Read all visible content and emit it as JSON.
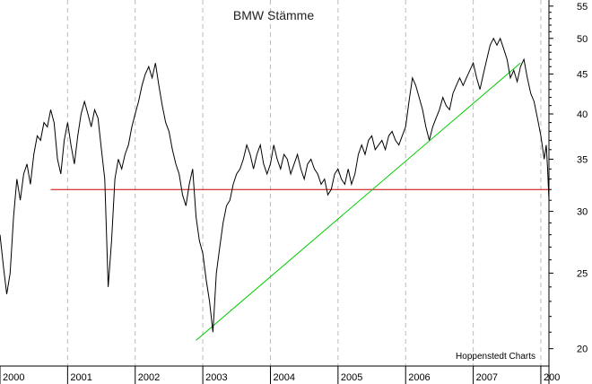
{
  "chart_data": {
    "type": "line",
    "title": "BMW Stämme",
    "source": "Hoppenstedt Charts",
    "x_tick_labels": [
      "2000",
      "2001",
      "2002",
      "2003",
      "2004",
      "2005",
      "2006",
      "2007",
      "200"
    ],
    "y_tick_labels": [
      "20",
      "25",
      "30",
      "35",
      "40",
      "45",
      "50",
      "55"
    ],
    "y_ticks": [
      20,
      25,
      30,
      35,
      40,
      45,
      50,
      55
    ],
    "yscale": "log",
    "ylim": [
      19,
      56
    ],
    "xlim": [
      2000.0,
      2008.12
    ],
    "grid": "vertical-dashed",
    "colors": {
      "price": "#000000",
      "support": "#cc0000",
      "trend": "#00cc00",
      "grid": "#bbbbbb"
    },
    "series": [
      {
        "points": [
          [
            2000.0,
            28.0
          ],
          [
            2000.05,
            25.5
          ],
          [
            2000.1,
            23.5
          ],
          [
            2000.15,
            25.0
          ],
          [
            2000.2,
            29.5
          ],
          [
            2000.25,
            33.0
          ],
          [
            2000.3,
            31.0
          ],
          [
            2000.35,
            33.5
          ],
          [
            2000.4,
            34.5
          ],
          [
            2000.45,
            32.5
          ],
          [
            2000.5,
            35.5
          ],
          [
            2000.55,
            37.5
          ],
          [
            2000.6,
            37.0
          ],
          [
            2000.65,
            39.0
          ],
          [
            2000.7,
            38.5
          ],
          [
            2000.75,
            40.5
          ],
          [
            2000.8,
            39.0
          ],
          [
            2000.85,
            35.0
          ],
          [
            2000.9,
            33.5
          ],
          [
            2000.95,
            37.0
          ],
          [
            2001.0,
            39.0
          ],
          [
            2001.05,
            36.5
          ],
          [
            2001.1,
            34.5
          ],
          [
            2001.15,
            37.5
          ],
          [
            2001.2,
            40.0
          ],
          [
            2001.25,
            41.5
          ],
          [
            2001.3,
            40.0
          ],
          [
            2001.35,
            38.5
          ],
          [
            2001.4,
            40.5
          ],
          [
            2001.45,
            39.5
          ],
          [
            2001.5,
            36.0
          ],
          [
            2001.55,
            33.0
          ],
          [
            2001.6,
            24.0
          ],
          [
            2001.65,
            27.5
          ],
          [
            2001.7,
            33.0
          ],
          [
            2001.75,
            35.0
          ],
          [
            2001.8,
            34.0
          ],
          [
            2001.85,
            35.5
          ],
          [
            2001.9,
            36.5
          ],
          [
            2001.95,
            38.5
          ],
          [
            2002.0,
            40.0
          ],
          [
            2002.05,
            41.5
          ],
          [
            2002.1,
            43.5
          ],
          [
            2002.15,
            45.0
          ],
          [
            2002.2,
            46.0
          ],
          [
            2002.25,
            44.5
          ],
          [
            2002.3,
            46.5
          ],
          [
            2002.35,
            43.5
          ],
          [
            2002.4,
            41.0
          ],
          [
            2002.45,
            39.0
          ],
          [
            2002.5,
            38.0
          ],
          [
            2002.55,
            36.0
          ],
          [
            2002.6,
            34.5
          ],
          [
            2002.65,
            33.5
          ],
          [
            2002.7,
            31.5
          ],
          [
            2002.75,
            30.5
          ],
          [
            2002.8,
            32.5
          ],
          [
            2002.85,
            34.0
          ],
          [
            2002.9,
            29.5
          ],
          [
            2002.95,
            27.5
          ],
          [
            2003.0,
            26.5
          ],
          [
            2003.05,
            24.5
          ],
          [
            2003.1,
            23.0
          ],
          [
            2003.15,
            21.0
          ],
          [
            2003.2,
            25.0
          ],
          [
            2003.25,
            27.0
          ],
          [
            2003.3,
            29.0
          ],
          [
            2003.35,
            30.5
          ],
          [
            2003.4,
            31.0
          ],
          [
            2003.45,
            32.5
          ],
          [
            2003.5,
            33.5
          ],
          [
            2003.55,
            34.0
          ],
          [
            2003.6,
            35.0
          ],
          [
            2003.65,
            36.5
          ],
          [
            2003.7,
            35.5
          ],
          [
            2003.75,
            34.0
          ],
          [
            2003.8,
            35.5
          ],
          [
            2003.85,
            36.5
          ],
          [
            2003.9,
            34.5
          ],
          [
            2003.95,
            33.5
          ],
          [
            2004.0,
            34.5
          ],
          [
            2004.05,
            36.5
          ],
          [
            2004.1,
            35.0
          ],
          [
            2004.15,
            34.0
          ],
          [
            2004.2,
            35.5
          ],
          [
            2004.25,
            35.0
          ],
          [
            2004.3,
            33.5
          ],
          [
            2004.35,
            34.5
          ],
          [
            2004.4,
            35.5
          ],
          [
            2004.45,
            34.0
          ],
          [
            2004.5,
            33.0
          ],
          [
            2004.55,
            34.5
          ],
          [
            2004.6,
            35.0
          ],
          [
            2004.65,
            34.0
          ],
          [
            2004.7,
            33.5
          ],
          [
            2004.75,
            32.5
          ],
          [
            2004.8,
            33.0
          ],
          [
            2004.85,
            31.5
          ],
          [
            2004.9,
            32.0
          ],
          [
            2004.95,
            33.5
          ],
          [
            2005.0,
            34.0
          ],
          [
            2005.05,
            33.0
          ],
          [
            2005.1,
            32.5
          ],
          [
            2005.15,
            34.0
          ],
          [
            2005.2,
            32.5
          ],
          [
            2005.25,
            33.5
          ],
          [
            2005.3,
            35.5
          ],
          [
            2005.35,
            36.5
          ],
          [
            2005.4,
            35.5
          ],
          [
            2005.45,
            37.0
          ],
          [
            2005.5,
            37.5
          ],
          [
            2005.55,
            36.0
          ],
          [
            2005.6,
            36.5
          ],
          [
            2005.65,
            37.0
          ],
          [
            2005.7,
            36.0
          ],
          [
            2005.75,
            37.5
          ],
          [
            2005.8,
            38.0
          ],
          [
            2005.85,
            37.0
          ],
          [
            2005.9,
            36.5
          ],
          [
            2005.95,
            37.5
          ],
          [
            2006.0,
            38.5
          ],
          [
            2006.05,
            41.5
          ],
          [
            2006.1,
            44.5
          ],
          [
            2006.15,
            43.5
          ],
          [
            2006.2,
            42.0
          ],
          [
            2006.25,
            40.5
          ],
          [
            2006.3,
            38.5
          ],
          [
            2006.35,
            37.0
          ],
          [
            2006.4,
            38.5
          ],
          [
            2006.45,
            39.5
          ],
          [
            2006.5,
            40.5
          ],
          [
            2006.55,
            42.0
          ],
          [
            2006.6,
            41.0
          ],
          [
            2006.65,
            40.5
          ],
          [
            2006.7,
            42.5
          ],
          [
            2006.75,
            43.5
          ],
          [
            2006.8,
            44.5
          ],
          [
            2006.85,
            43.5
          ],
          [
            2006.9,
            44.5
          ],
          [
            2006.95,
            45.5
          ],
          [
            2007.0,
            46.5
          ],
          [
            2007.05,
            44.5
          ],
          [
            2007.1,
            43.0
          ],
          [
            2007.15,
            45.0
          ],
          [
            2007.2,
            47.0
          ],
          [
            2007.25,
            49.0
          ],
          [
            2007.3,
            50.0
          ],
          [
            2007.35,
            49.0
          ],
          [
            2007.4,
            50.0
          ],
          [
            2007.45,
            48.5
          ],
          [
            2007.5,
            47.0
          ],
          [
            2007.55,
            44.5
          ],
          [
            2007.6,
            45.5
          ],
          [
            2007.65,
            44.0
          ],
          [
            2007.7,
            46.0
          ],
          [
            2007.75,
            47.0
          ],
          [
            2007.8,
            44.5
          ],
          [
            2007.85,
            42.5
          ],
          [
            2007.9,
            41.5
          ],
          [
            2007.95,
            39.5
          ],
          [
            2008.0,
            37.5
          ],
          [
            2008.05,
            35.0
          ],
          [
            2008.08,
            36.5
          ],
          [
            2008.1,
            34.0
          ],
          [
            2008.12,
            31.0
          ]
        ]
      }
    ],
    "lines": [
      {
        "kind": "support",
        "from": [
          2000.75,
          32.0
        ],
        "to": [
          2008.12,
          32.0
        ]
      },
      {
        "kind": "trend",
        "from": [
          2002.9,
          20.5
        ],
        "to": [
          2007.7,
          46.5
        ]
      }
    ]
  }
}
